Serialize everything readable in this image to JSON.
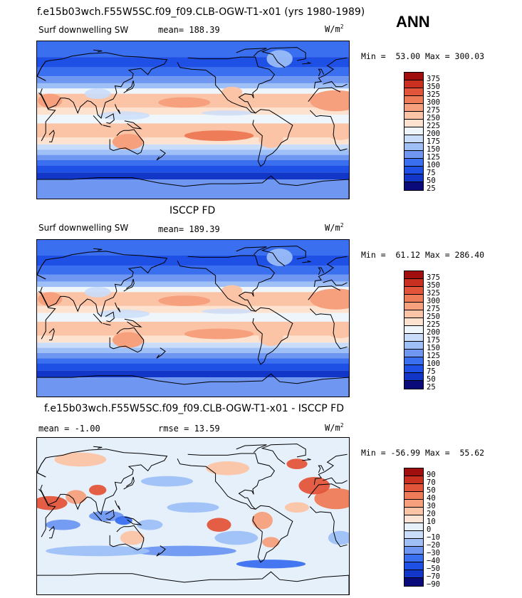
{
  "season": "ANN",
  "colors": {
    "sw_levels": [
      "#0a0a7a",
      "#1236c8",
      "#1f50e6",
      "#3a6fef",
      "#6f97f2",
      "#9ec0f7",
      "#c9ddfb",
      "#eef5fb",
      "#fde2d0",
      "#fbc4a6",
      "#f6a07d",
      "#ef7c58",
      "#e3553a",
      "#c9301f",
      "#a00e0e"
    ],
    "diff_levels": [
      "#0a0a7a",
      "#1236c8",
      "#1f50e6",
      "#3a6fef",
      "#6f97f2",
      "#9ec0f7",
      "#c9ddfb",
      "#e6f0fb",
      "#fbe4d6",
      "#fbc4a6",
      "#f6a07d",
      "#ef7c58",
      "#e3553a",
      "#c9301f",
      "#a00e0e"
    ]
  },
  "panels": [
    {
      "title": "f.e15b03wch.F55W5SC.f09_f09.CLB-OGW-T1-x01 (yrs 1980-1989)",
      "variable": "Surf downwelling SW",
      "mean_text": "mean= 188.39",
      "units": "W/m",
      "units_sup": "2",
      "min_max": "Min =  53.00 Max = 300.03",
      "colorbar_labels": [
        "375",
        "350",
        "325",
        "300",
        "275",
        "250",
        "225",
        "200",
        "175",
        "150",
        "125",
        "100",
        "75",
        "50",
        "25"
      ]
    },
    {
      "title": "ISCCP FD",
      "variable": "Surf downwelling SW",
      "mean_text": "mean= 189.39",
      "units": "W/m",
      "units_sup": "2",
      "min_max": "Min =  61.12 Max = 286.40",
      "colorbar_labels": [
        "375",
        "350",
        "325",
        "300",
        "275",
        "250",
        "225",
        "200",
        "175",
        "150",
        "125",
        "100",
        "75",
        "50",
        "25"
      ]
    },
    {
      "title": "f.e15b03wch.F55W5SC.f09_f09.CLB-OGW-T1-x01 - ISCCP FD",
      "mean_text": "mean =  -1.00",
      "rmse_text": "rmse =  13.59",
      "units": "W/m",
      "units_sup": "2",
      "min_max": "Min = -56.99 Max =  55.62",
      "colorbar_labels": [
        "90",
        "70",
        "50",
        "40",
        "30",
        "20",
        "10",
        "0",
        "−10",
        "−20",
        "−30",
        "−40",
        "−50",
        "−70",
        "−90"
      ]
    }
  ]
}
